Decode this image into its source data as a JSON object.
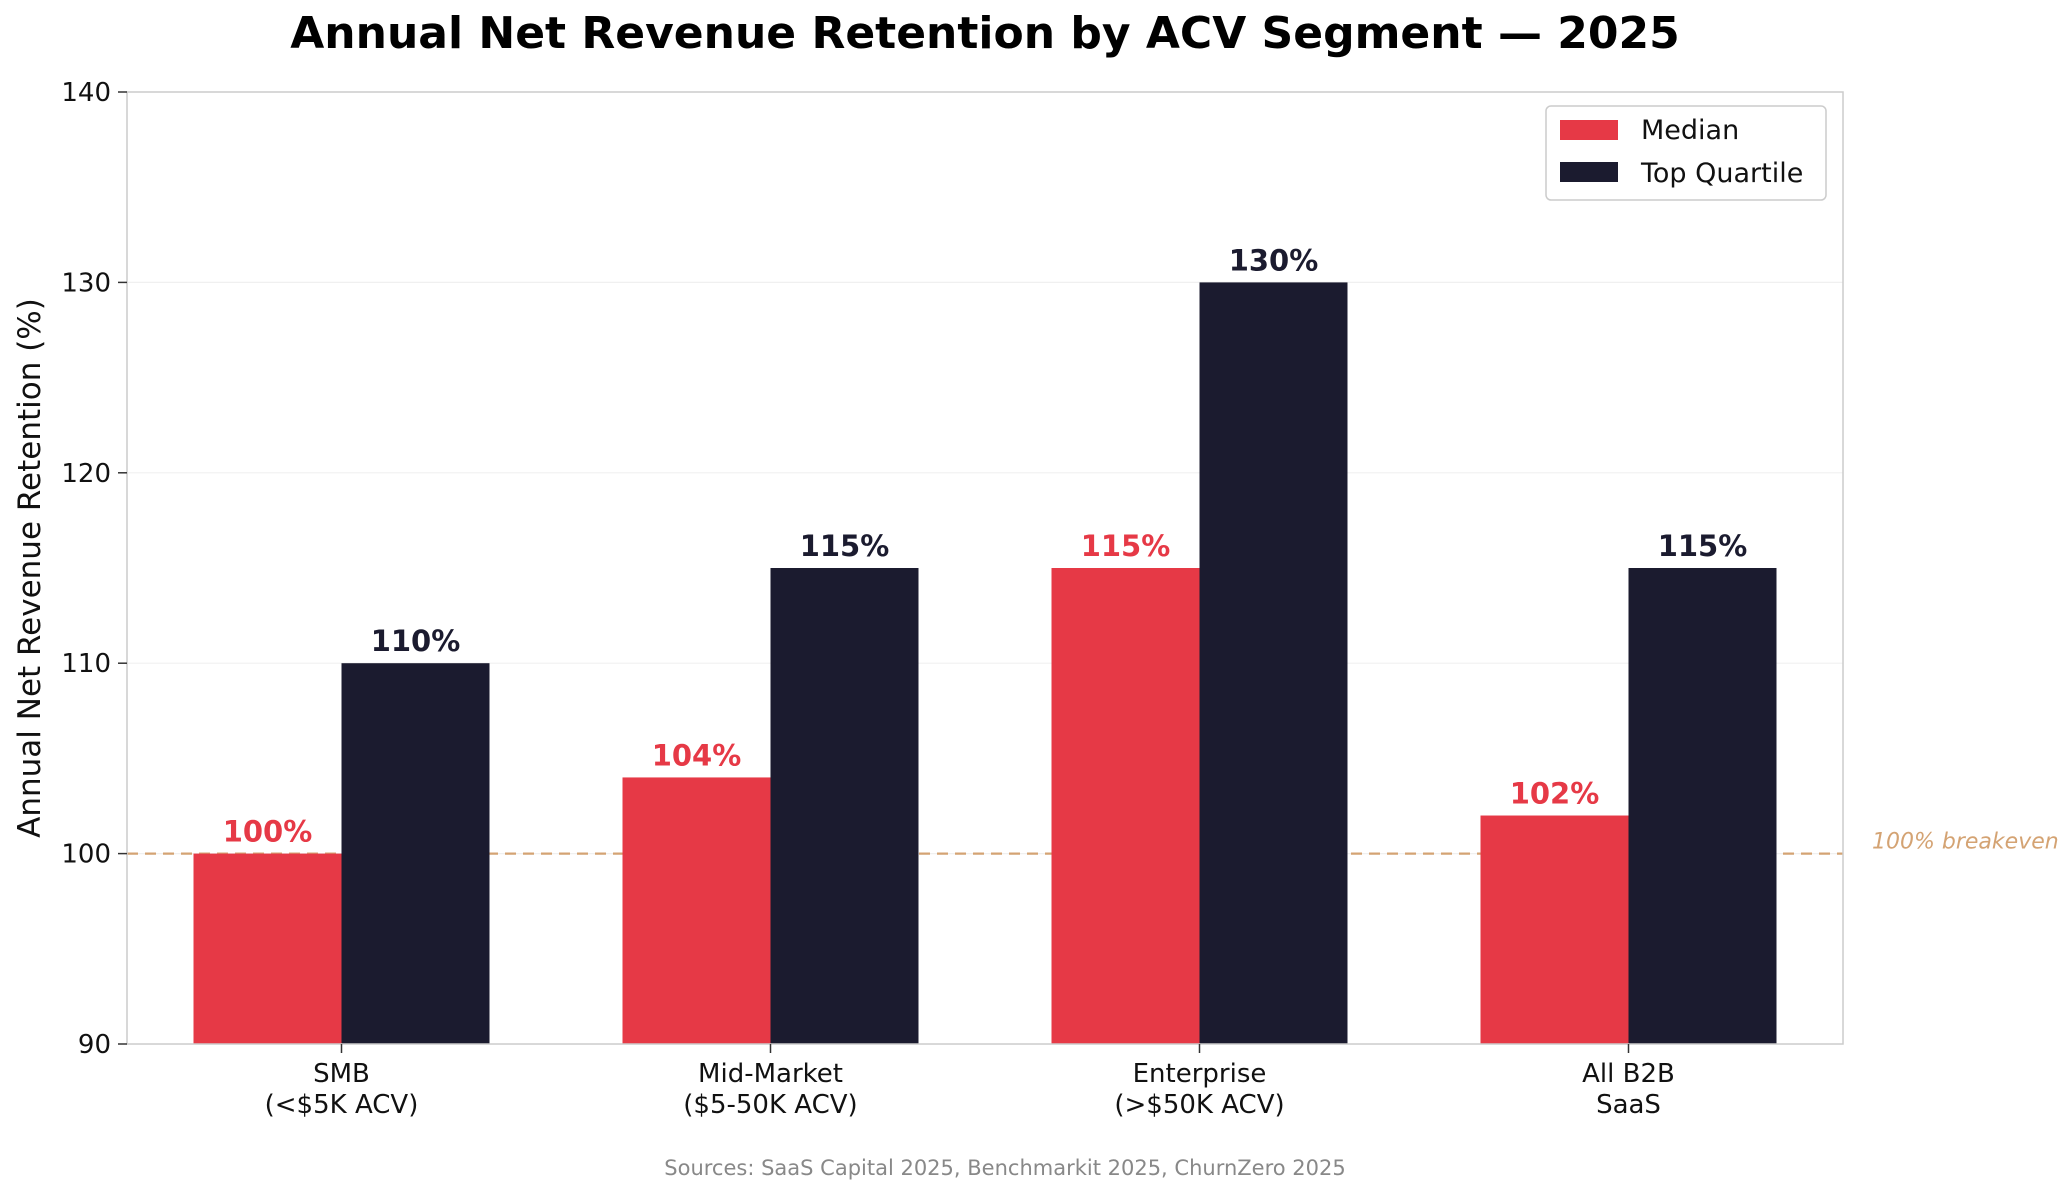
{
  "chart_data": {
    "type": "bar",
    "title": "Annual Net Revenue Retention by ACV Segment — 2025",
    "xlabel": "",
    "ylabel": "Annual Net Revenue Retention (%)",
    "ylim": [
      90,
      140
    ],
    "yticks": [
      90,
      100,
      110,
      120,
      130,
      140
    ],
    "grid": "horizontal, light",
    "legend_position": "top-right",
    "categories": [
      [
        "SMB",
        "(<$5K ACV)"
      ],
      [
        "Mid-Market",
        "($5-50K ACV)"
      ],
      [
        "Enterprise",
        "(>$50K ACV)"
      ],
      [
        "All B2B",
        "SaaS"
      ]
    ],
    "series": [
      {
        "name": "Median",
        "color": "#e63946",
        "values": [
          100,
          104,
          115,
          102
        ],
        "labels": [
          "100%",
          "104%",
          "115%",
          "102%"
        ]
      },
      {
        "name": "Top Quartile",
        "color": "#1b1b2f",
        "values": [
          110,
          115,
          130,
          115
        ],
        "labels": [
          "110%",
          "115%",
          "130%",
          "115%"
        ]
      }
    ],
    "reference_line": {
      "value": 100,
      "label": "100% breakeven",
      "color": "#d4a373",
      "style": "dashed"
    },
    "source": "Sources: SaaS Capital 2025, Benchmarkit 2025, ChurnZero 2025"
  }
}
